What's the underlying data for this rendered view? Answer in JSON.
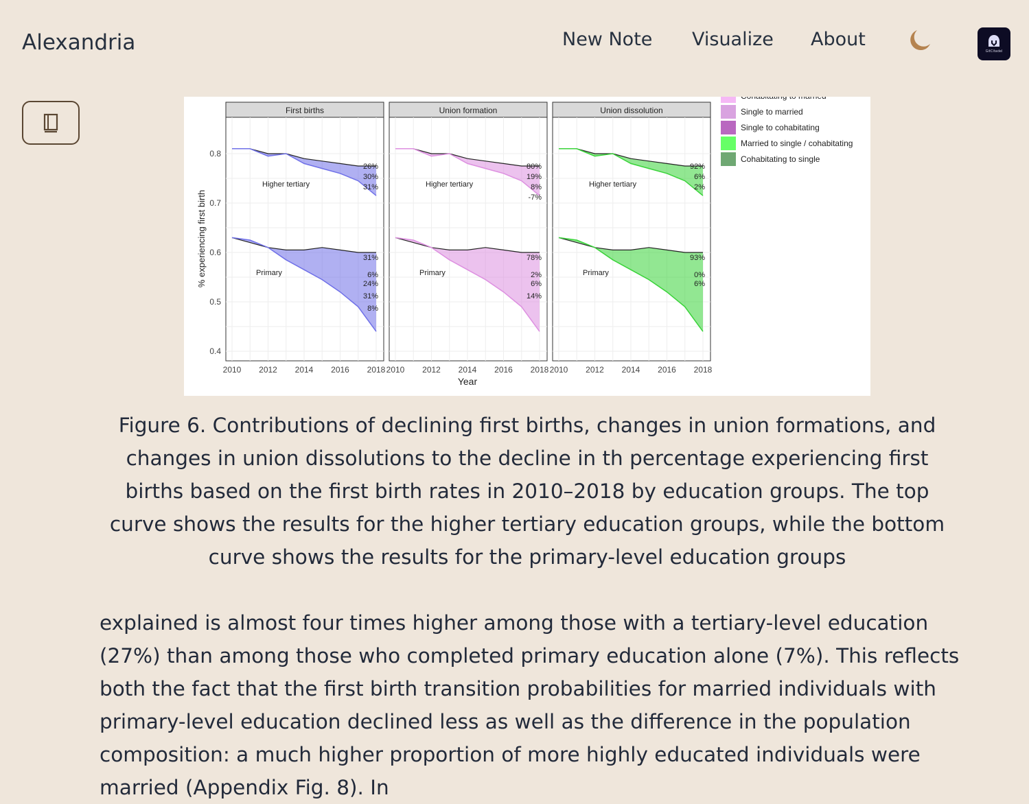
{
  "header": {
    "brand": "Alexandria",
    "nav": [
      "New Note",
      "Visualize",
      "About"
    ],
    "theme_icon": "moon-icon",
    "avatar_label": "GitCitadel"
  },
  "sidebar_button": {
    "icon": "book-icon"
  },
  "figure": {
    "panels": [
      "First births",
      "Union formation",
      "Union dissolution"
    ],
    "ylabel": "% experiencing first birth",
    "xlabel": "Year",
    "yticks": [
      "0.8",
      "0.7",
      "0.6",
      "0.5",
      "0.4"
    ],
    "xticks": [
      "2010",
      "2012",
      "2014",
      "2016",
      "2018"
    ],
    "group_labels": [
      "Higher tertiary",
      "Primary"
    ],
    "legend": [
      {
        "label": "Cohabitating to married",
        "color": "#f5b8f5"
      },
      {
        "label": "Single to married",
        "color": "#d9a3e0"
      },
      {
        "label": "Single to cohabitating",
        "color": "#b968c0"
      },
      {
        "label": "Married to single / cohabitating",
        "color": "#66ff66"
      },
      {
        "label": "Cohabitating to single",
        "color": "#6fa873"
      }
    ],
    "panel_colors": [
      "#6f70e8",
      "#dd8fe0",
      "#39d339"
    ],
    "years": [
      2010,
      2011,
      2012,
      2013,
      2014,
      2015,
      2016,
      2017,
      2018
    ],
    "higher_baseline": [
      0.81,
      0.81,
      0.8,
      0.8,
      0.79,
      0.785,
      0.78,
      0.775,
      0.775
    ],
    "higher_actual": [
      0.81,
      0.81,
      0.795,
      0.8,
      0.78,
      0.77,
      0.76,
      0.745,
      0.715
    ],
    "primary_baseline": [
      0.63,
      0.62,
      0.61,
      0.605,
      0.605,
      0.61,
      0.605,
      0.6,
      0.6
    ],
    "primary_actual": [
      0.63,
      0.625,
      0.61,
      0.585,
      0.565,
      0.545,
      0.52,
      0.49,
      0.44
    ],
    "pct_labels": [
      {
        "higher": [
          "26%",
          "30%",
          "31%"
        ],
        "primary": [
          "31%",
          "6%",
          "24%",
          "31%",
          "8%"
        ]
      },
      {
        "higher": [
          "80%",
          "19%",
          "8%",
          "-7%"
        ],
        "primary": [
          "78%",
          "2%",
          "6%",
          "14%"
        ]
      },
      {
        "higher": [
          "92%",
          "6%",
          "2%"
        ],
        "primary": [
          "93%",
          "0%",
          "6%"
        ]
      }
    ]
  },
  "caption": "Figure 6. Contributions of declining first births, changes in union formations, and changes in union dissolutions to the decline in th percentage experiencing first births based on the first birth rates in 2010–2018 by education groups. The top curve shows the results for the higher tertiary education groups, while the bottom curve shows the results for the primary-level education groups",
  "body_text": "explained is almost four times higher among those with a tertiary-level education (27%) than among those who completed primary education alone (7%). This reflects both the fact that the first birth transition probabilities for married individuals with primary-level education declined less as well as the difference in the population composition: a much higher proportion of more highly educated individuals were married (Appendix Fig. 8). In"
}
